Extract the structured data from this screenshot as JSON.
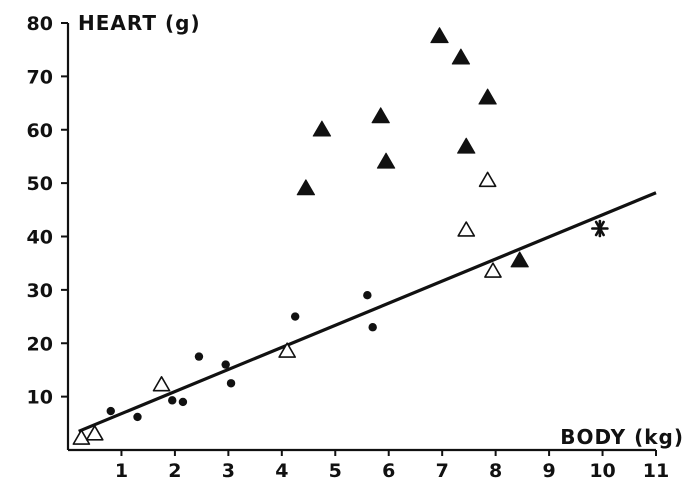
{
  "chart_data": {
    "type": "scatter",
    "xlabel": "BODY (kg)",
    "ylabel": "HEART (g)",
    "xlim": [
      0,
      11
    ],
    "ylim": [
      0,
      80
    ],
    "x_ticks": [
      1,
      2,
      3,
      4,
      5,
      6,
      7,
      8,
      9,
      10,
      11
    ],
    "y_ticks": [
      10,
      20,
      30,
      40,
      50,
      60,
      70,
      80
    ],
    "grid": false,
    "series": [
      {
        "marker": "filled-circle",
        "points": [
          [
            0.8,
            7.3
          ],
          [
            1.3,
            6.2
          ],
          [
            1.95,
            9.3
          ],
          [
            2.15,
            9.0
          ],
          [
            2.45,
            17.5
          ],
          [
            2.95,
            16.0
          ],
          [
            3.05,
            12.5
          ],
          [
            4.25,
            25.0
          ],
          [
            5.6,
            29.0
          ],
          [
            5.7,
            23.0
          ]
        ]
      },
      {
        "marker": "open-triangle",
        "points": [
          [
            0.25,
            2.2
          ],
          [
            0.5,
            3.0
          ],
          [
            1.75,
            12.2
          ],
          [
            4.1,
            18.5
          ],
          [
            7.45,
            41.2
          ],
          [
            7.85,
            50.5
          ],
          [
            7.95,
            33.5
          ]
        ]
      },
      {
        "marker": "filled-triangle",
        "points": [
          [
            4.45,
            49.0
          ],
          [
            4.75,
            60.0
          ],
          [
            5.85,
            62.5
          ],
          [
            5.95,
            54.0
          ],
          [
            6.95,
            77.5
          ],
          [
            7.35,
            73.5
          ],
          [
            7.45,
            56.8
          ],
          [
            7.85,
            66.0
          ],
          [
            8.45,
            35.5
          ]
        ]
      },
      {
        "marker": "asterisk",
        "points": [
          [
            9.95,
            41.5
          ]
        ]
      }
    ],
    "trend_line": {
      "from": [
        0.2,
        3.5
      ],
      "to": [
        11.0,
        48.2
      ]
    }
  }
}
